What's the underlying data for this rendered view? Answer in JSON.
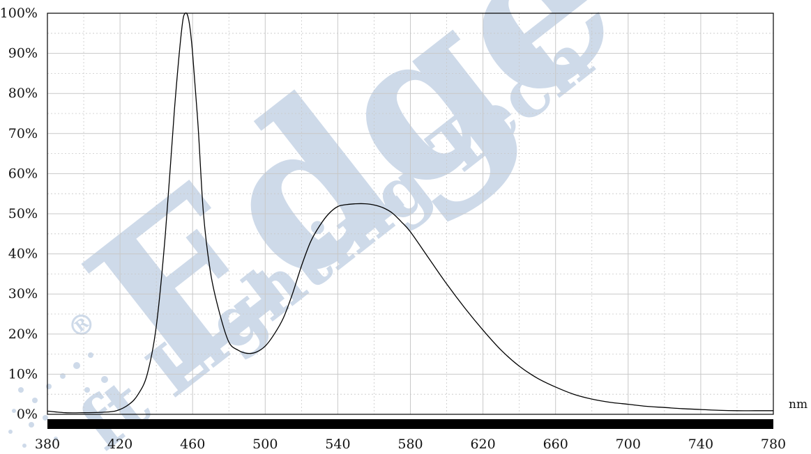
{
  "chart_data": {
    "type": "line",
    "title": "",
    "xlabel": "",
    "ylabel": "",
    "x_unit": "nm",
    "xlim": [
      380,
      780
    ],
    "ylim": [
      0,
      100
    ],
    "x_ticks": [
      "380",
      "420",
      "460",
      "500",
      "540",
      "580",
      "620",
      "660",
      "700",
      "740",
      "780"
    ],
    "y_ticks": [
      "0%",
      "10%",
      "20%",
      "30%",
      "40%",
      "50%",
      "60%",
      "70%",
      "80%",
      "90%",
      "100%"
    ],
    "grid": true,
    "series": [
      {
        "x": [
          380,
          390,
          400,
          410,
          418,
          425,
          430,
          435,
          440,
          445,
          450,
          454,
          456,
          458,
          460,
          463,
          466,
          470,
          475,
          480,
          485,
          490,
          495,
          500,
          505,
          510,
          515,
          520,
          525,
          530,
          535,
          540,
          545,
          550,
          555,
          560,
          565,
          570,
          575,
          580,
          590,
          600,
          610,
          620,
          630,
          640,
          650,
          660,
          670,
          680,
          690,
          700,
          710,
          720,
          730,
          740,
          750,
          760,
          770,
          780
        ],
        "y": [
          0.8,
          0.4,
          0.4,
          0.5,
          0.9,
          2.5,
          5,
          10,
          22,
          45,
          76,
          96,
          100,
          98,
          90,
          72,
          50,
          35,
          25,
          18,
          16,
          15.2,
          15.5,
          17,
          20,
          24,
          30,
          37,
          43,
          47,
          50,
          51.8,
          52.3,
          52.5,
          52.5,
          52.2,
          51.5,
          50.2,
          48,
          45.5,
          39,
          32.5,
          26.5,
          21,
          16,
          12,
          9,
          6.8,
          5,
          3.8,
          3,
          2.5,
          2,
          1.7,
          1.4,
          1.2,
          1,
          0.9,
          0.9,
          0.9
        ]
      }
    ],
    "colors": {
      "line": "#000000",
      "grid": "#c8c8c8",
      "spectrum_bar": "#000000",
      "watermark": "#c6d4e6"
    }
  },
  "watermark": {
    "main": "Edge",
    "sub": "ft Lighting Tech",
    "mark": "®"
  }
}
